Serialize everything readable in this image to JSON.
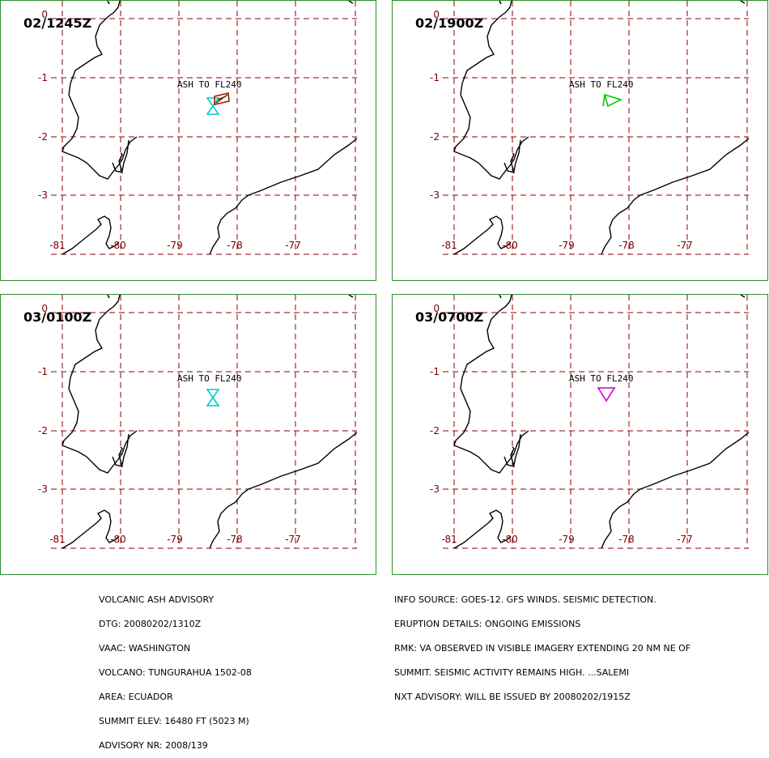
{
  "panels": [
    {
      "title": "02/1245Z",
      "ash_label": "ASH TO FL240",
      "polygon_color": "#8b2500",
      "polygon_type": "parallelogram"
    },
    {
      "title": "02/1900Z",
      "ash_label": "ASH TO FL240",
      "polygon_color": "#00cc00",
      "polygon_type": "wedge"
    },
    {
      "title": "03/0100Z",
      "ash_label": "ASH TO FL240",
      "polygon_color": "",
      "polygon_type": "none"
    },
    {
      "title": "03/0700Z",
      "ash_label": "ASH TO FL240",
      "polygon_color": "#cc00cc",
      "polygon_type": "triangle"
    }
  ],
  "lat_labels": [
    "0",
    "-1",
    "-2",
    "-3"
  ],
  "lon_labels": [
    "-81",
    "-80",
    "-79",
    "-78",
    "-77"
  ],
  "volcano_icon_color": "#00cccc",
  "grid_color": "#8b0000",
  "footer_left": [
    "VOLCANIC ASH ADVISORY",
    "DTG: 20080202/1310Z",
    "VAAC: WASHINGTON",
    "VOLCANO: TUNGURAHUA 1502-08",
    "AREA: ECUADOR",
    "SUMMIT ELEV: 16480 FT (5023 M)",
    "ADVISORY NR: 2008/139"
  ],
  "footer_right": [
    "INFO SOURCE: GOES-12. GFS WINDS. SEISMIC DETECTION.",
    "ERUPTION DETAILS: ONGOING EMISSIONS",
    "RMK: VA OBSERVED IN VISIBLE IMAGERY EXTENDING 20 NM NE OF",
    "SUMMIT. SEISMIC ACTIVITY REMAINS HIGH. ...SALEMI",
    "NXT ADVISORY: WILL BE ISSUED BY 20080202/1915Z"
  ]
}
